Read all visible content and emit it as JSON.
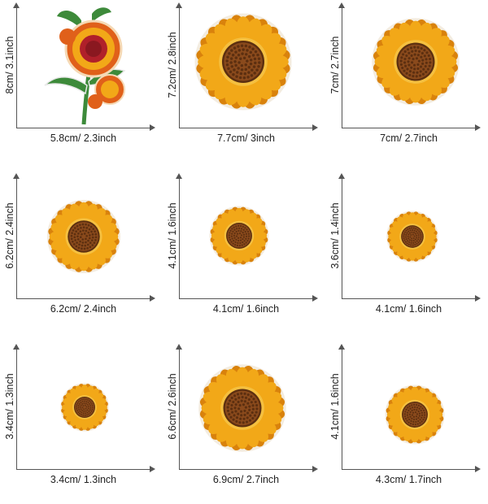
{
  "patches": [
    {
      "width_label": "5.8cm/ 2.3inch",
      "height_label": "8cm/ 3.1inch"
    },
    {
      "width_label": "7.7cm/ 3inch",
      "height_label": "7.2cm/ 2.8inch"
    },
    {
      "width_label": "7cm/ 2.7inch",
      "height_label": "7cm/ 2.7inch"
    },
    {
      "width_label": "6.2cm/ 2.4inch",
      "height_label": "6.2cm/ 2.4inch"
    },
    {
      "width_label": "4.1cm/ 1.6inch",
      "height_label": "4.1cm/ 1.6inch"
    },
    {
      "width_label": "4.1cm/ 1.6inch",
      "height_label": "3.6cm/ 1.4inch"
    },
    {
      "width_label": "3.4cm/ 1.3inch",
      "height_label": "3.4cm/ 1.3inch"
    },
    {
      "width_label": "6.9cm/ 2.7inch",
      "height_label": "6.6cm/ 2.6inch"
    },
    {
      "width_label": "4.3cm/ 1.7inch",
      "height_label": "4.1cm/ 1.6inch"
    }
  ],
  "colors": {
    "petal": "#f2a818",
    "petal_dark": "#d9820c",
    "center": "#8a4a1c",
    "center_dark": "#5c2f10",
    "red_petal": "#e0601a",
    "red_center": "#b0202a",
    "leaf": "#3d8a3a"
  }
}
